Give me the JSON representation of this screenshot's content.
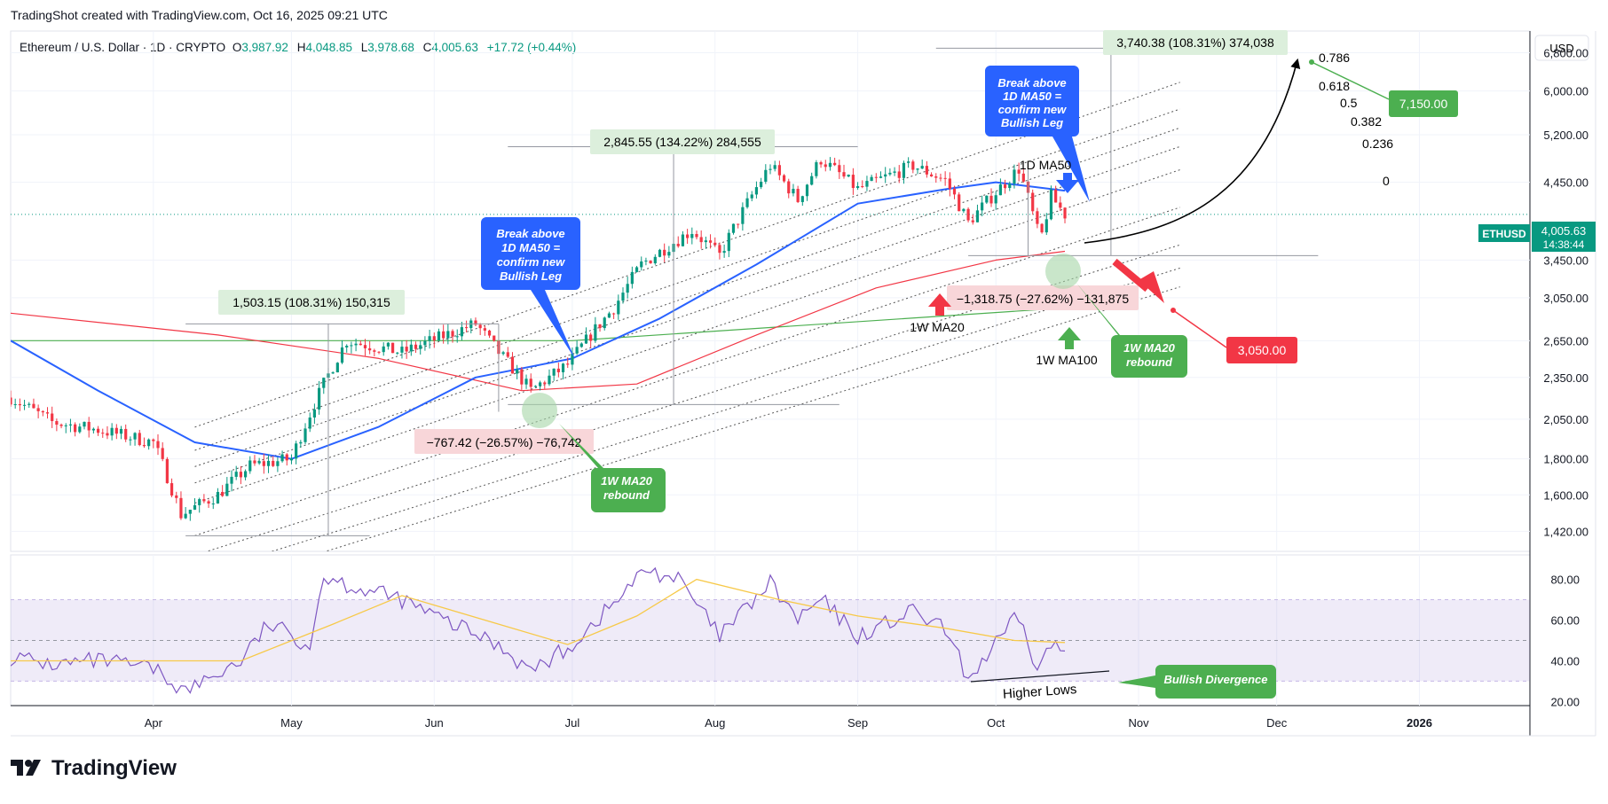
{
  "caption": "TradingShot created with TradingView.com, Oct 16, 2025 09:21 UTC",
  "brand": {
    "name": "TradingView",
    "logo_icon": "tradingview-logo-icon"
  },
  "header": {
    "symbol": "Ethereum / U.S. Dollar · 1D · CRYPTO",
    "open_label": "O",
    "open": "3,987.92",
    "high_label": "H",
    "high": "4,048.85",
    "low_label": "L",
    "low": "3,978.68",
    "close_label": "C",
    "close": "4,005.63",
    "change": "+17.72 (+0.44%)"
  },
  "currency": "USD",
  "price_badge": {
    "ticker": "ETHUSD",
    "price": "4,005.63",
    "countdown": "14:38:44"
  },
  "colors": {
    "up": "#089981",
    "down": "#f23645",
    "ma50": "#2962ff",
    "ma200": "#f23645",
    "wma100": "#4caf50",
    "rsi": "#7e57c2",
    "rsi_ma": "#f7c948",
    "blue_callout": "#2962ff",
    "green_callout": "#4caf50",
    "red_box": "#f23645"
  },
  "annotations": {
    "measure_1": "1,503.15 (108.31%) 150,315",
    "measure_2": "2,845.55 (134.22%) 284,555",
    "measure_3": "3,740.38 (108.31%) 374,038",
    "measure_neg_1": "−767.42 (−26.57%) −76,742",
    "measure_neg_2": "−1,318.75 (−27.62%) −131,875",
    "callout_break_1": [
      "Break above",
      "1D MA50 =",
      "confirm new",
      "Bullish Leg"
    ],
    "callout_break_2": [
      "Break above",
      "1D MA50 =",
      "confirm new",
      "Bullish Leg"
    ],
    "callout_rebound_1": [
      "1W MA20",
      "rebound"
    ],
    "callout_rebound_2": [
      "1W MA20",
      "rebound"
    ],
    "label_1d_ma50": "1D MA50",
    "label_1w_ma20": "1W MA20",
    "label_1w_ma100": "1W MA100",
    "target_up": "7,150.00",
    "target_down": "3,050.00",
    "fib_levels": [
      "0.786",
      "0.618",
      "0.5",
      "0.382",
      "0.236",
      "0"
    ],
    "higher_lows": "Higher Lows",
    "bullish_divergence": "Bullish Divergence"
  },
  "chart_data": [
    {
      "type": "candlestick",
      "title": "Ethereum / U.S. Dollar · 1D · CRYPTO",
      "y_scale": "log",
      "ylim": [
        1330,
        7300
      ],
      "x_range": [
        "2025-03-01",
        "2026-01-25"
      ],
      "y_ticks": [
        "6,800.00",
        "6,000.00",
        "5,200.00",
        "4,450.00",
        "3,450.00",
        "3,050.00",
        "2,650.00",
        "2,350.00",
        "2,050.00",
        "1,800.00",
        "1,600.00",
        "1,420.00"
      ],
      "y_tick_values": [
        6800,
        6000,
        5200,
        4450,
        3450,
        3050,
        2650,
        2350,
        2050,
        1800,
        1600,
        1420
      ],
      "x_ticks": [
        "Apr",
        "May",
        "Jun",
        "Jul",
        "Aug",
        "Sep",
        "Oct",
        "Nov",
        "Dec",
        "2026"
      ],
      "x_tick_dates": [
        "2025-04-01",
        "2025-05-01",
        "2025-06-01",
        "2025-07-01",
        "2025-08-01",
        "2025-09-01",
        "2025-10-01",
        "2025-11-01",
        "2025-12-01",
        "2026-01-01"
      ],
      "close_anchors": [
        [
          "2025-03-01",
          2200
        ],
        [
          "2025-03-10",
          2030
        ],
        [
          "2025-03-20",
          1980
        ],
        [
          "2025-04-01",
          1900
        ],
        [
          "2025-04-07",
          1500
        ],
        [
          "2025-04-15",
          1600
        ],
        [
          "2025-04-22",
          1760
        ],
        [
          "2025-05-01",
          1800
        ],
        [
          "2025-05-08",
          2300
        ],
        [
          "2025-05-13",
          2650
        ],
        [
          "2025-05-25",
          2550
        ],
        [
          "2025-06-10",
          2800
        ],
        [
          "2025-06-15",
          2550
        ],
        [
          "2025-06-22",
          2250
        ],
        [
          "2025-06-30",
          2450
        ],
        [
          "2025-07-10",
          2950
        ],
        [
          "2025-07-16",
          3400
        ],
        [
          "2025-07-27",
          3800
        ],
        [
          "2025-08-02",
          3500
        ],
        [
          "2025-08-13",
          4700
        ],
        [
          "2025-08-19",
          4200
        ],
        [
          "2025-08-24",
          4800
        ],
        [
          "2025-09-01",
          4350
        ],
        [
          "2025-09-13",
          4700
        ],
        [
          "2025-09-20",
          4480
        ],
        [
          "2025-09-25",
          3900
        ],
        [
          "2025-10-06",
          4650
        ],
        [
          "2025-10-10",
          3800
        ],
        [
          "2025-10-11",
          3750
        ],
        [
          "2025-10-13",
          4250
        ],
        [
          "2025-10-16",
          4005.63
        ]
      ],
      "ma50_1d": [
        [
          "2025-03-01",
          2650
        ],
        [
          "2025-03-20",
          2250
        ],
        [
          "2025-04-10",
          1900
        ],
        [
          "2025-05-01",
          1800
        ],
        [
          "2025-05-20",
          2000
        ],
        [
          "2025-06-10",
          2350
        ],
        [
          "2025-07-01",
          2500
        ],
        [
          "2025-07-20",
          2850
        ],
        [
          "2025-08-10",
          3400
        ],
        [
          "2025-09-01",
          4150
        ],
        [
          "2025-09-20",
          4350
        ],
        [
          "2025-10-01",
          4450
        ],
        [
          "2025-10-16",
          4330
        ]
      ],
      "ma_red": [
        [
          "2025-03-01",
          2900
        ],
        [
          "2025-04-15",
          2700
        ],
        [
          "2025-05-20",
          2500
        ],
        [
          "2025-06-20",
          2250
        ],
        [
          "2025-07-15",
          2300
        ],
        [
          "2025-08-10",
          2700
        ],
        [
          "2025-09-05",
          3150
        ],
        [
          "2025-10-01",
          3450
        ],
        [
          "2025-10-16",
          3550
        ]
      ],
      "ma_green": [
        [
          "2025-03-01",
          2650
        ],
        [
          "2025-07-01",
          2650
        ],
        [
          "2025-10-16",
          2950
        ]
      ],
      "fib_channel": {
        "levels": [
          0,
          0.236,
          0.382,
          0.5,
          0.618,
          0.786
        ],
        "base_start": [
          "2025-04-10",
          1400
        ],
        "base_end": [
          "2025-11-10",
          4100
        ],
        "top_start": [
          "2025-04-10",
          2200
        ],
        "top_end": [
          "2025-11-10",
          6900
        ]
      },
      "projection_targets": {
        "up": 7150,
        "down": 3050
      }
    },
    {
      "type": "line",
      "title": "RSI",
      "ylim": [
        18,
        92
      ],
      "y_ticks": [
        "80.00",
        "60.00",
        "40.00",
        "20.00"
      ],
      "y_tick_values": [
        80,
        60,
        40,
        20
      ],
      "band": [
        30,
        70
      ],
      "midline": 50,
      "series": [
        {
          "values": [
            [
              "2025-03-01",
              42
            ],
            [
              "2025-03-10",
              38
            ],
            [
              "2025-03-20",
              40
            ],
            [
              "2025-04-01",
              36
            ],
            [
              "2025-04-08",
              25
            ],
            [
              "2025-04-20",
              40
            ],
            [
              "2025-04-26",
              58
            ],
            [
              "2025-05-05",
              48
            ],
            [
              "2025-05-08",
              82
            ],
            [
              "2025-05-15",
              76
            ],
            [
              "2025-05-25",
              70
            ],
            [
              "2025-06-01",
              62
            ],
            [
              "2025-06-15",
              48
            ],
            [
              "2025-06-22",
              35
            ],
            [
              "2025-06-30",
              46
            ],
            [
              "2025-07-10",
              68
            ],
            [
              "2025-07-17",
              85
            ],
            [
              "2025-07-24",
              80
            ],
            [
              "2025-08-02",
              52
            ],
            [
              "2025-08-13",
              78
            ],
            [
              "2025-08-19",
              60
            ],
            [
              "2025-08-24",
              70
            ],
            [
              "2025-09-01",
              52
            ],
            [
              "2025-09-13",
              64
            ],
            [
              "2025-09-20",
              55
            ],
            [
              "2025-09-25",
              31
            ],
            [
              "2025-10-06",
              62
            ],
            [
              "2025-10-10",
              35
            ],
            [
              "2025-10-13",
              48
            ],
            [
              "2025-10-16",
              44
            ]
          ]
        },
        {
          "values": [
            [
              "2025-03-01",
              40
            ],
            [
              "2025-04-01",
              40
            ],
            [
              "2025-04-20",
              40
            ],
            [
              "2025-05-10",
              58
            ],
            [
              "2025-05-25",
              72
            ],
            [
              "2025-06-15",
              58
            ],
            [
              "2025-06-30",
              48
            ],
            [
              "2025-07-15",
              62
            ],
            [
              "2025-07-28",
              80
            ],
            [
              "2025-08-15",
              70
            ],
            [
              "2025-09-01",
              62
            ],
            [
              "2025-09-20",
              56
            ],
            [
              "2025-10-05",
              50
            ],
            [
              "2025-10-16",
              49
            ]
          ]
        }
      ]
    }
  ]
}
